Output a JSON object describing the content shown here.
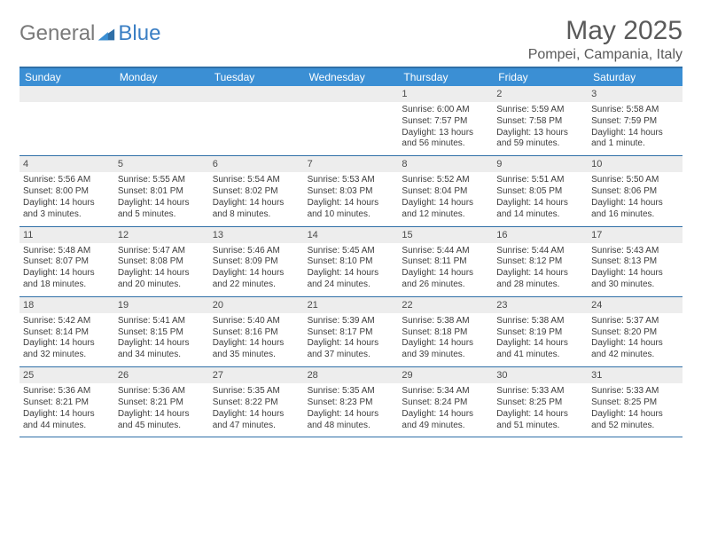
{
  "logo": {
    "text1": "General",
    "text2": "Blue"
  },
  "title": "May 2025",
  "location": "Pompei, Campania, Italy",
  "colors": {
    "header_bar": "#3b8fd4",
    "rule": "#2f6fa7",
    "day_bar": "#ededed"
  },
  "weekdays": [
    "Sunday",
    "Monday",
    "Tuesday",
    "Wednesday",
    "Thursday",
    "Friday",
    "Saturday"
  ],
  "weeks": [
    [
      {
        "blank": true
      },
      {
        "blank": true
      },
      {
        "blank": true
      },
      {
        "blank": true
      },
      {
        "n": "1",
        "sr": "6:00 AM",
        "ss": "7:57 PM",
        "dl": "13 hours and 56 minutes."
      },
      {
        "n": "2",
        "sr": "5:59 AM",
        "ss": "7:58 PM",
        "dl": "13 hours and 59 minutes."
      },
      {
        "n": "3",
        "sr": "5:58 AM",
        "ss": "7:59 PM",
        "dl": "14 hours and 1 minute."
      }
    ],
    [
      {
        "n": "4",
        "sr": "5:56 AM",
        "ss": "8:00 PM",
        "dl": "14 hours and 3 minutes."
      },
      {
        "n": "5",
        "sr": "5:55 AM",
        "ss": "8:01 PM",
        "dl": "14 hours and 5 minutes."
      },
      {
        "n": "6",
        "sr": "5:54 AM",
        "ss": "8:02 PM",
        "dl": "14 hours and 8 minutes."
      },
      {
        "n": "7",
        "sr": "5:53 AM",
        "ss": "8:03 PM",
        "dl": "14 hours and 10 minutes."
      },
      {
        "n": "8",
        "sr": "5:52 AM",
        "ss": "8:04 PM",
        "dl": "14 hours and 12 minutes."
      },
      {
        "n": "9",
        "sr": "5:51 AM",
        "ss": "8:05 PM",
        "dl": "14 hours and 14 minutes."
      },
      {
        "n": "10",
        "sr": "5:50 AM",
        "ss": "8:06 PM",
        "dl": "14 hours and 16 minutes."
      }
    ],
    [
      {
        "n": "11",
        "sr": "5:48 AM",
        "ss": "8:07 PM",
        "dl": "14 hours and 18 minutes."
      },
      {
        "n": "12",
        "sr": "5:47 AM",
        "ss": "8:08 PM",
        "dl": "14 hours and 20 minutes."
      },
      {
        "n": "13",
        "sr": "5:46 AM",
        "ss": "8:09 PM",
        "dl": "14 hours and 22 minutes."
      },
      {
        "n": "14",
        "sr": "5:45 AM",
        "ss": "8:10 PM",
        "dl": "14 hours and 24 minutes."
      },
      {
        "n": "15",
        "sr": "5:44 AM",
        "ss": "8:11 PM",
        "dl": "14 hours and 26 minutes."
      },
      {
        "n": "16",
        "sr": "5:44 AM",
        "ss": "8:12 PM",
        "dl": "14 hours and 28 minutes."
      },
      {
        "n": "17",
        "sr": "5:43 AM",
        "ss": "8:13 PM",
        "dl": "14 hours and 30 minutes."
      }
    ],
    [
      {
        "n": "18",
        "sr": "5:42 AM",
        "ss": "8:14 PM",
        "dl": "14 hours and 32 minutes."
      },
      {
        "n": "19",
        "sr": "5:41 AM",
        "ss": "8:15 PM",
        "dl": "14 hours and 34 minutes."
      },
      {
        "n": "20",
        "sr": "5:40 AM",
        "ss": "8:16 PM",
        "dl": "14 hours and 35 minutes."
      },
      {
        "n": "21",
        "sr": "5:39 AM",
        "ss": "8:17 PM",
        "dl": "14 hours and 37 minutes."
      },
      {
        "n": "22",
        "sr": "5:38 AM",
        "ss": "8:18 PM",
        "dl": "14 hours and 39 minutes."
      },
      {
        "n": "23",
        "sr": "5:38 AM",
        "ss": "8:19 PM",
        "dl": "14 hours and 41 minutes."
      },
      {
        "n": "24",
        "sr": "5:37 AM",
        "ss": "8:20 PM",
        "dl": "14 hours and 42 minutes."
      }
    ],
    [
      {
        "n": "25",
        "sr": "5:36 AM",
        "ss": "8:21 PM",
        "dl": "14 hours and 44 minutes."
      },
      {
        "n": "26",
        "sr": "5:36 AM",
        "ss": "8:21 PM",
        "dl": "14 hours and 45 minutes."
      },
      {
        "n": "27",
        "sr": "5:35 AM",
        "ss": "8:22 PM",
        "dl": "14 hours and 47 minutes."
      },
      {
        "n": "28",
        "sr": "5:35 AM",
        "ss": "8:23 PM",
        "dl": "14 hours and 48 minutes."
      },
      {
        "n": "29",
        "sr": "5:34 AM",
        "ss": "8:24 PM",
        "dl": "14 hours and 49 minutes."
      },
      {
        "n": "30",
        "sr": "5:33 AM",
        "ss": "8:25 PM",
        "dl": "14 hours and 51 minutes."
      },
      {
        "n": "31",
        "sr": "5:33 AM",
        "ss": "8:25 PM",
        "dl": "14 hours and 52 minutes."
      }
    ]
  ],
  "label_sunrise": "Sunrise: ",
  "label_sunset": "Sunset: ",
  "label_daylight": "Daylight: "
}
